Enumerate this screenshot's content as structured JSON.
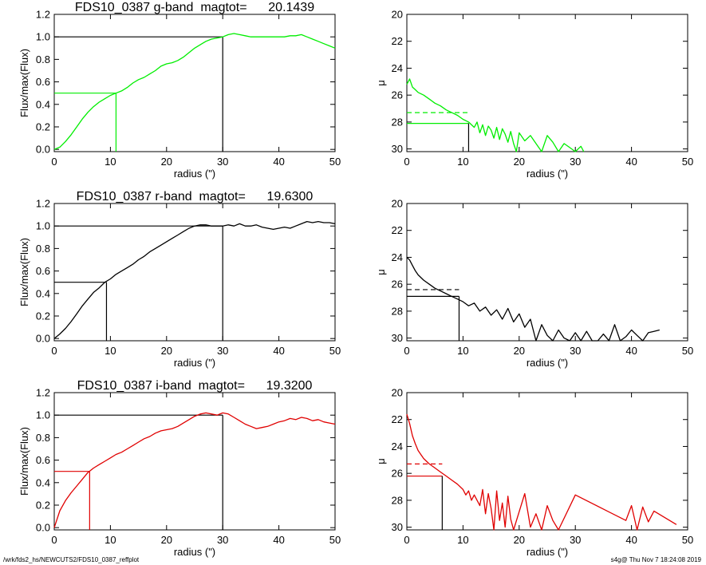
{
  "footer": {
    "path": "/wrk/fds2_hs/NEWCUTS2/FDS10_0387_reffplot",
    "stamp": "s4g@  Thu Nov  7 18:24:08 2019"
  },
  "colors": {
    "g": "#00ee00",
    "r": "#000000",
    "i": "#e00000",
    "axes": "#000000"
  },
  "chart_data": [
    {
      "type": "line",
      "panel": "g-growth",
      "title": "FDS10_0387 g-band  magtot=      20.1439",
      "xlabel": "radius (\")",
      "ylabel": "Flux/max(Flux)",
      "xlim": [
        0,
        50
      ],
      "ylim": [
        -0.02,
        1.2
      ],
      "xticks": [
        0,
        10,
        20,
        30,
        40,
        50
      ],
      "yticks": [
        0.0,
        0.2,
        0.4,
        0.6,
        0.8,
        1.0,
        1.2
      ],
      "ytick_labels": [
        "0.0",
        "0.2",
        "0.4",
        "0.6",
        "0.8",
        "1.0",
        "1.2"
      ],
      "color": "#00ee00",
      "x": [
        0,
        1,
        2,
        3,
        4,
        5,
        6,
        7,
        8,
        9,
        10,
        11,
        12,
        13,
        14,
        15,
        16,
        17,
        18,
        19,
        20,
        21,
        22,
        23,
        24,
        25,
        26,
        27,
        28,
        29,
        30,
        31,
        32,
        33,
        34,
        35,
        36,
        37,
        38,
        39,
        40,
        41,
        42,
        43,
        44,
        45,
        46,
        47,
        48,
        49,
        50
      ],
      "y": [
        0.0,
        0.02,
        0.07,
        0.13,
        0.2,
        0.27,
        0.33,
        0.38,
        0.42,
        0.45,
        0.48,
        0.5,
        0.52,
        0.55,
        0.59,
        0.62,
        0.64,
        0.67,
        0.7,
        0.74,
        0.76,
        0.77,
        0.79,
        0.82,
        0.86,
        0.9,
        0.93,
        0.96,
        0.98,
        0.99,
        1.0,
        1.02,
        1.03,
        1.02,
        1.01,
        1.0,
        1.0,
        1.0,
        1.0,
        1.0,
        1.0,
        1.0,
        1.01,
        1.01,
        1.02,
        1.0,
        0.98,
        0.96,
        0.94,
        0.92,
        0.9
      ],
      "guides": [
        {
          "kind": "half-light",
          "radius": 11.0,
          "value": 0.5,
          "color": "#00ee00"
        },
        {
          "kind": "total",
          "radius": 30.0,
          "value": 1.0,
          "color": "#000000"
        }
      ]
    },
    {
      "type": "line",
      "panel": "g-profile",
      "title": "",
      "xlabel": "radius (\")",
      "ylabel": "μ",
      "xlim": [
        0,
        50
      ],
      "ylim": [
        30.2,
        20
      ],
      "y_inverted": true,
      "xticks": [
        0,
        10,
        20,
        30,
        40,
        50
      ],
      "yticks": [
        20,
        22,
        24,
        26,
        28,
        30
      ],
      "color": "#00ee00",
      "x": [
        0,
        0.5,
        1,
        1.5,
        2,
        3,
        4,
        5,
        6,
        7,
        8,
        9,
        10,
        11,
        12,
        12.5,
        13,
        13.5,
        14,
        14.5,
        15,
        15.5,
        16,
        16.5,
        17,
        17.5,
        18,
        18.5,
        19,
        19.5,
        20,
        21,
        22,
        23,
        24,
        25,
        26,
        27,
        28,
        29,
        30,
        31,
        31.5
      ],
      "y": [
        25.2,
        24.8,
        25.4,
        25.6,
        25.8,
        26.0,
        26.3,
        26.6,
        26.8,
        27.1,
        27.3,
        27.5,
        27.8,
        28.0,
        28.4,
        28.0,
        28.8,
        28.2,
        29.0,
        28.3,
        28.6,
        29.2,
        28.4,
        29.3,
        28.5,
        28.9,
        29.5,
        28.7,
        29.6,
        30.2,
        28.8,
        29.4,
        29.0,
        29.6,
        30.2,
        29.0,
        29.5,
        30.2,
        29.6,
        29.9,
        30.2,
        29.8,
        30.2
      ],
      "guides": [
        {
          "kind": "mu-eff",
          "value": 28.1,
          "radius": 11.0,
          "style": "solid",
          "color": "#00ee00"
        },
        {
          "kind": "mu-mean",
          "value": 27.3,
          "radius": 11.0,
          "style": "dashed",
          "color": "#00ee00"
        },
        {
          "kind": "r-eff",
          "radius": 11.0,
          "color": "#000000"
        }
      ]
    },
    {
      "type": "line",
      "panel": "r-growth",
      "title": "FDS10_0387 r-band  magtot=      19.6300",
      "xlabel": "radius (\")",
      "ylabel": "Flux/max(Flux)",
      "xlim": [
        0,
        50
      ],
      "ylim": [
        -0.02,
        1.2
      ],
      "xticks": [
        0,
        10,
        20,
        30,
        40,
        50
      ],
      "yticks": [
        0.0,
        0.2,
        0.4,
        0.6,
        0.8,
        1.0,
        1.2
      ],
      "ytick_labels": [
        "0.0",
        "0.2",
        "0.4",
        "0.6",
        "0.8",
        "1.0",
        "1.2"
      ],
      "color": "#000000",
      "x": [
        0,
        1,
        2,
        3,
        4,
        5,
        6,
        7,
        8,
        9,
        10,
        11,
        12,
        13,
        14,
        15,
        16,
        17,
        18,
        19,
        20,
        21,
        22,
        23,
        24,
        25,
        26,
        27,
        28,
        29,
        30,
        31,
        32,
        33,
        34,
        35,
        36,
        37,
        38,
        39,
        40,
        41,
        42,
        43,
        44,
        45,
        46,
        47,
        48,
        49,
        50
      ],
      "y": [
        0.0,
        0.04,
        0.09,
        0.15,
        0.22,
        0.29,
        0.35,
        0.41,
        0.45,
        0.5,
        0.53,
        0.57,
        0.6,
        0.63,
        0.66,
        0.7,
        0.73,
        0.77,
        0.8,
        0.83,
        0.86,
        0.89,
        0.92,
        0.95,
        0.98,
        1.0,
        1.01,
        1.01,
        1.0,
        1.0,
        1.0,
        1.01,
        1.0,
        1.02,
        1.0,
        1.0,
        1.01,
        0.99,
        0.98,
        0.97,
        0.98,
        0.99,
        0.98,
        1.0,
        1.02,
        1.04,
        1.03,
        1.04,
        1.03,
        1.03,
        1.02
      ],
      "guides": [
        {
          "kind": "half-light",
          "radius": 9.3,
          "value": 0.5,
          "color": "#000000"
        },
        {
          "kind": "total",
          "radius": 30.0,
          "value": 1.0,
          "color": "#000000"
        }
      ]
    },
    {
      "type": "line",
      "panel": "r-profile",
      "title": "",
      "xlabel": "radius (\")",
      "ylabel": "μ",
      "xlim": [
        0,
        50
      ],
      "ylim": [
        30.2,
        20
      ],
      "y_inverted": true,
      "xticks": [
        0,
        10,
        20,
        30,
        40,
        50
      ],
      "yticks": [
        20,
        22,
        24,
        26,
        28,
        30
      ],
      "color": "#000000",
      "x": [
        0,
        0.5,
        1,
        1.5,
        2,
        3,
        4,
        5,
        6,
        7,
        8,
        9,
        10,
        11,
        12,
        13,
        14,
        15,
        16,
        17,
        18,
        19,
        20,
        21,
        22,
        23,
        24,
        25,
        26,
        27,
        28,
        29,
        30,
        31,
        32,
        33,
        34,
        35,
        36,
        37,
        38,
        39,
        40,
        41,
        42,
        43,
        44,
        45
      ],
      "y": [
        24.0,
        24.2,
        24.6,
        25.0,
        25.3,
        25.7,
        26.0,
        26.3,
        26.5,
        26.7,
        26.9,
        27.1,
        27.3,
        27.6,
        27.4,
        28.0,
        27.7,
        28.3,
        27.9,
        28.6,
        27.8,
        28.8,
        28.2,
        29.2,
        28.6,
        30.2,
        29.0,
        29.8,
        30.2,
        29.4,
        30.0,
        30.2,
        29.6,
        30.2,
        29.5,
        30.2,
        30.2,
        29.7,
        30.2,
        29.0,
        30.2,
        29.9,
        29.4,
        29.8,
        30.2,
        29.6,
        29.5,
        29.4
      ],
      "guides": [
        {
          "kind": "mu-eff",
          "value": 26.9,
          "radius": 9.3,
          "style": "solid",
          "color": "#000000"
        },
        {
          "kind": "mu-mean",
          "value": 26.4,
          "radius": 9.3,
          "style": "dashed",
          "color": "#000000"
        },
        {
          "kind": "r-eff",
          "radius": 9.3,
          "color": "#000000"
        }
      ]
    },
    {
      "type": "line",
      "panel": "i-growth",
      "title": "FDS10_0387 i-band  magtot=      19.3200",
      "xlabel": "radius (\")",
      "ylabel": "Flux/max(Flux)",
      "xlim": [
        0,
        50
      ],
      "ylim": [
        -0.02,
        1.2
      ],
      "xticks": [
        0,
        10,
        20,
        30,
        40,
        50
      ],
      "yticks": [
        0.0,
        0.2,
        0.4,
        0.6,
        0.8,
        1.0,
        1.2
      ],
      "ytick_labels": [
        "0.0",
        "0.2",
        "0.4",
        "0.6",
        "0.8",
        "1.0",
        "1.2"
      ],
      "color": "#e00000",
      "x": [
        0,
        1,
        2,
        3,
        4,
        5,
        6,
        7,
        8,
        9,
        10,
        11,
        12,
        13,
        14,
        15,
        16,
        17,
        18,
        19,
        20,
        21,
        22,
        23,
        24,
        25,
        26,
        27,
        28,
        29,
        30,
        31,
        32,
        33,
        34,
        35,
        36,
        37,
        38,
        39,
        40,
        41,
        42,
        43,
        44,
        45,
        46,
        47,
        48,
        49,
        50
      ],
      "y": [
        0.0,
        0.15,
        0.24,
        0.31,
        0.37,
        0.43,
        0.49,
        0.53,
        0.56,
        0.59,
        0.62,
        0.65,
        0.67,
        0.7,
        0.73,
        0.76,
        0.79,
        0.81,
        0.84,
        0.86,
        0.87,
        0.88,
        0.9,
        0.93,
        0.96,
        0.99,
        1.01,
        1.02,
        1.01,
        1.0,
        1.02,
        1.01,
        0.98,
        0.95,
        0.92,
        0.9,
        0.88,
        0.89,
        0.9,
        0.92,
        0.94,
        0.95,
        0.97,
        0.96,
        0.98,
        0.97,
        0.95,
        0.96,
        0.94,
        0.93,
        0.92
      ],
      "guides": [
        {
          "kind": "half-light",
          "radius": 6.3,
          "value": 0.5,
          "color": "#e00000"
        },
        {
          "kind": "total",
          "radius": 30.0,
          "value": 1.0,
          "color": "#000000"
        }
      ]
    },
    {
      "type": "line",
      "panel": "i-profile",
      "title": "",
      "xlabel": "radius (\")",
      "ylabel": "μ",
      "xlim": [
        0,
        50
      ],
      "ylim": [
        30.2,
        20
      ],
      "y_inverted": true,
      "xticks": [
        0,
        10,
        20,
        30,
        40,
        50
      ],
      "yticks": [
        20,
        22,
        24,
        26,
        28,
        30
      ],
      "color": "#e00000",
      "x": [
        0,
        0.5,
        1,
        1.5,
        2,
        2.5,
        3,
        4,
        5,
        6,
        7,
        8,
        9,
        10,
        10.5,
        11,
        11.5,
        12,
        13,
        13.5,
        14,
        14.5,
        15,
        15.5,
        16,
        16.5,
        17,
        17.5,
        18,
        18.5,
        19,
        21,
        22,
        23,
        24,
        25,
        26,
        27,
        30,
        39,
        40,
        41,
        42,
        43,
        44,
        48
      ],
      "y": [
        21.6,
        22.3,
        23.2,
        23.8,
        24.3,
        24.6,
        24.9,
        25.3,
        25.6,
        25.9,
        26.2,
        26.5,
        26.8,
        27.2,
        27.6,
        27.3,
        28.0,
        27.6,
        28.4,
        27.2,
        29.0,
        27.5,
        28.6,
        30.2,
        27.3,
        29.5,
        28.2,
        30.0,
        27.7,
        29.4,
        30.2,
        27.5,
        30.0,
        29.0,
        30.2,
        28.4,
        29.5,
        30.2,
        27.6,
        29.5,
        28.4,
        30.2,
        28.5,
        29.6,
        28.8,
        29.8
      ],
      "guides": [
        {
          "kind": "mu-eff",
          "value": 26.2,
          "radius": 6.3,
          "style": "solid",
          "color": "#e00000"
        },
        {
          "kind": "mu-mean",
          "value": 25.3,
          "radius": 6.3,
          "style": "dashed",
          "color": "#e00000"
        },
        {
          "kind": "r-eff",
          "radius": 6.3,
          "color": "#000000"
        }
      ]
    }
  ]
}
